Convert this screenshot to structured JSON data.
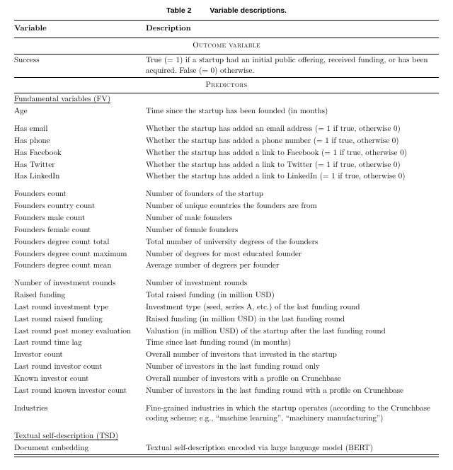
{
  "caption_prefix": "Table 2",
  "caption_text": "Variable descriptions.",
  "header_variable": "Variable",
  "header_description": "Description",
  "section_outcome": "Outcome variable",
  "section_predictors": "Predictors",
  "outcome": {
    "name": "Success",
    "desc": "True (= 1) if a startup had an initial public offering, received funding, or has been acquired. False (= 0) otherwise."
  },
  "group_fv_title": "Fundamental variables (FV)",
  "group_tsd_title": "Textual self-description (TSD)",
  "fv_block1": [
    {
      "name": "Age",
      "desc": "Time since the startup has been founded (in months)"
    }
  ],
  "fv_block2": [
    {
      "name": "Has email",
      "desc": "Whether the startup has added an email address (= 1 if true, otherwise 0)"
    },
    {
      "name": "Has phone",
      "desc": "Whether the startup has added a phone number (= 1 if true, otherwise 0)"
    },
    {
      "name": "Has Facebook",
      "desc": "Whether the startup has added a link to Facebook (= 1 if true, otherwise 0)"
    },
    {
      "name": "Has Twitter",
      "desc": "Whether the startup has added a link to Twitter (= 1 if true, otherwise 0)"
    },
    {
      "name": "Has LinkedIn",
      "desc": "Whether the startup has added a link to LinkedIn (= 1 if true, otherwise 0)"
    }
  ],
  "fv_block3": [
    {
      "name": "Founders count",
      "desc": "Number of founders of the startup"
    },
    {
      "name": "Founders country count",
      "desc": "Number of unique countries the founders are from"
    },
    {
      "name": "Founders male count",
      "desc": "Number of male founders"
    },
    {
      "name": "Founders female count",
      "desc": "Number of female founders"
    },
    {
      "name": "Founders degree count total",
      "desc": "Total number of university degrees of the founders"
    },
    {
      "name": "Founders degree count maximum",
      "desc": "Number of degrees for most educated founder"
    },
    {
      "name": "Founders degree count mean",
      "desc": "Average number of degrees per founder"
    }
  ],
  "fv_block4": [
    {
      "name": "Number of investment rounds",
      "desc": "Number of investment rounds"
    },
    {
      "name": "Raised funding",
      "desc": "Total raised funding (in million USD)"
    },
    {
      "name": "Last round investment type",
      "desc": "Investment type (seed, series A, etc.) of the last funding round"
    },
    {
      "name": "Last round raised funding",
      "desc": "Raised funding (in million USD) in the last funding round"
    },
    {
      "name": "Last round post money evaluation",
      "desc": "Valuation (in million USD) of the startup after the last funding round"
    },
    {
      "name": "Last round time lag",
      "desc": "Time since last funding round (in months)"
    },
    {
      "name": "Investor count",
      "desc": "Overall number of investors that invested in the startup"
    },
    {
      "name": "Last round investor count",
      "desc": "Number of investors in the last funding round only"
    },
    {
      "name": "Known investor count",
      "desc": "Overall number of investors with a profile on Crunchbase"
    },
    {
      "name": "Last round known investor count",
      "desc": "Number of investors in the last funding round with a profile on Crunchbase"
    }
  ],
  "fv_block5": [
    {
      "name": "Industries",
      "desc": "Fine-grained industries in which the startup operates (according to the Crunchbase coding scheme; e.g., “machine learning”, “machinery manufacturing”)"
    }
  ],
  "tsd_block": [
    {
      "name": "Document embedding",
      "desc": "Textual self-description encoded via large language model (BERT)"
    }
  ]
}
